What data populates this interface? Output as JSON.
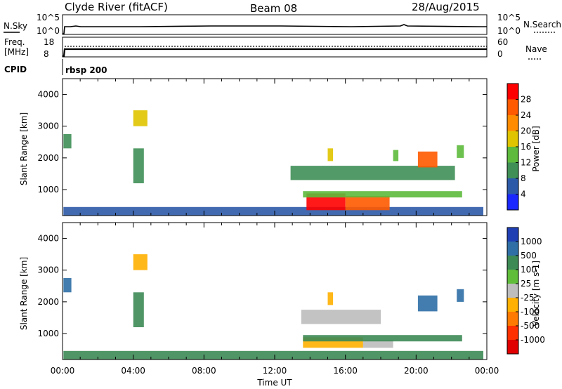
{
  "header": {
    "station": "Clyde River (fitACF)",
    "beam": "Beam 08",
    "date": "28/Aug/2015"
  },
  "strip_nsky": {
    "label": "N.Sky",
    "right_label": "N.Search",
    "left_ticks": [
      "10^5",
      "10^0"
    ],
    "right_ticks": [
      "10^5",
      "10^0"
    ]
  },
  "strip_freq": {
    "label_line1": "Freq.",
    "label_line2": "[MHz]",
    "right_label": "Nave",
    "left_ticks": [
      "18",
      "8"
    ],
    "right_ticks": [
      "60",
      "0"
    ]
  },
  "strip_cpid": {
    "label": "CPID",
    "value": "rbsp 200"
  },
  "colors": {
    "power_scale": [
      "#1a28ff",
      "#2c5aa8",
      "#3f8f57",
      "#5dba3c",
      "#e0c400",
      "#ff8c00",
      "#ff5a00",
      "#ff0000"
    ],
    "velocity_scale": [
      "#1f3fb3",
      "#2f6fa6",
      "#3d8a55",
      "#5fbd3a",
      "#bdbdbd",
      "#ffb000",
      "#ff7a00",
      "#ff3000",
      "#e00000"
    ]
  },
  "chart_data": [
    {
      "type": "heatmap",
      "name": "power",
      "xlabel": "",
      "ylabel": "Slant Range [km]",
      "ylim": [
        180,
        4500
      ],
      "y_ticks": [
        "1000",
        "2000",
        "3000",
        "4000"
      ],
      "colorbar": {
        "label": "Power [dB]",
        "ticks": [
          "4",
          "8",
          "12",
          "16",
          "20",
          "24",
          "28"
        ],
        "range": [
          0,
          32
        ]
      },
      "patches": [
        {
          "x": [
            0.05,
            23.8
          ],
          "y": [
            180,
            450
          ],
          "value": 6
        },
        {
          "x": [
            13.8,
            16.0
          ],
          "y": [
            350,
            880
          ],
          "value": 30
        },
        {
          "x": [
            16.0,
            18.5
          ],
          "y": [
            350,
            800
          ],
          "value": 26
        },
        {
          "x": [
            13.6,
            22.6
          ],
          "y": [
            750,
            950
          ],
          "value": 12
        },
        {
          "x": [
            12.9,
            22.2
          ],
          "y": [
            1300,
            1750
          ],
          "value": 8
        },
        {
          "x": [
            4.0,
            4.6
          ],
          "y": [
            1200,
            2300
          ],
          "value": 10
        },
        {
          "x": [
            4.0,
            4.8
          ],
          "y": [
            3000,
            3500
          ],
          "value": 16
        },
        {
          "x": [
            20.1,
            21.2
          ],
          "y": [
            1700,
            2200
          ],
          "value": 24
        },
        {
          "x": [
            15.0,
            15.3
          ],
          "y": [
            1900,
            2300
          ],
          "value": 18
        },
        {
          "x": [
            18.7,
            19.0
          ],
          "y": [
            1900,
            2250
          ],
          "value": 14
        },
        {
          "x": [
            0.05,
            0.5
          ],
          "y": [
            2300,
            2750
          ],
          "value": 8
        },
        {
          "x": [
            22.3,
            22.7
          ],
          "y": [
            2000,
            2400
          ],
          "value": 12
        }
      ]
    },
    {
      "type": "heatmap",
      "name": "velocity",
      "xlabel": "Time UT",
      "ylabel": "Slant Range [km]",
      "ylim": [
        180,
        4500
      ],
      "x_ticks": [
        "00:00",
        "04:00",
        "08:00",
        "12:00",
        "16:00",
        "20:00",
        "00:00"
      ],
      "y_ticks": [
        "1000",
        "2000",
        "3000",
        "4000"
      ],
      "colorbar": {
        "label": "Velocity [m s-1]",
        "ticks": [
          "1000",
          "500",
          "100",
          "25",
          "-25",
          "-100",
          "-500",
          "-1000"
        ]
      },
      "patches": [
        {
          "x": [
            0.05,
            23.8
          ],
          "y": [
            180,
            450
          ],
          "value": 100
        },
        {
          "x": [
            13.6,
            17.0
          ],
          "y": [
            550,
            880
          ],
          "value": -100
        },
        {
          "x": [
            17.0,
            18.7
          ],
          "y": [
            550,
            800
          ],
          "value": 0
        },
        {
          "x": [
            13.6,
            22.6
          ],
          "y": [
            750,
            950
          ],
          "value": 300
        },
        {
          "x": [
            13.5,
            18.0
          ],
          "y": [
            1300,
            1750
          ],
          "value": 0
        },
        {
          "x": [
            4.0,
            4.6
          ],
          "y": [
            1200,
            2300
          ],
          "value": 300
        },
        {
          "x": [
            4.0,
            4.8
          ],
          "y": [
            3000,
            3500
          ],
          "value": -100
        },
        {
          "x": [
            20.1,
            21.2
          ],
          "y": [
            1700,
            2200
          ],
          "value": 800
        },
        {
          "x": [
            15.0,
            15.3
          ],
          "y": [
            1900,
            2300
          ],
          "value": -100
        },
        {
          "x": [
            0.05,
            0.5
          ],
          "y": [
            2300,
            2750
          ],
          "value": 800
        },
        {
          "x": [
            22.3,
            22.7
          ],
          "y": [
            2000,
            2400
          ],
          "value": 800
        }
      ]
    }
  ]
}
